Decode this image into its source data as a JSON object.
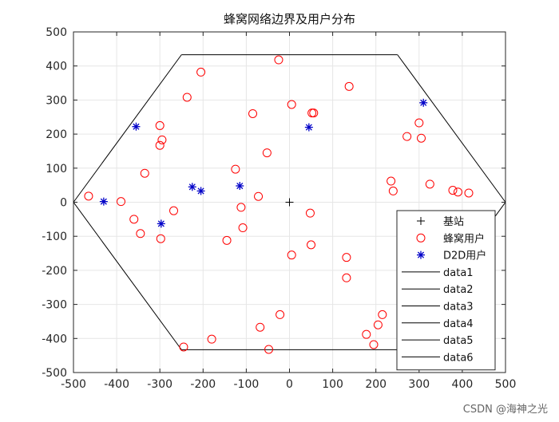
{
  "chart_data": {
    "type": "scatter",
    "title": "蜂窝网络边界及用户分布",
    "xlim": [
      -500,
      500
    ],
    "ylim": [
      -500,
      500
    ],
    "xticks": [
      -500,
      -400,
      -300,
      -200,
      -100,
      0,
      100,
      200,
      300,
      400,
      500
    ],
    "yticks": [
      -500,
      -400,
      -300,
      -200,
      -100,
      0,
      100,
      200,
      300,
      400,
      500
    ],
    "grid": true,
    "legend_position": "bottom-right",
    "base_station": {
      "name": "基站",
      "marker": "plus",
      "color": "#000000",
      "points": [
        [
          0,
          0
        ]
      ]
    },
    "cellular_users": {
      "name": "蜂窝用户",
      "marker": "circle",
      "color": "#ff0000",
      "points": [
        [
          -465,
          18
        ],
        [
          -390,
          2
        ],
        [
          -360,
          -50
        ],
        [
          -345,
          -92
        ],
        [
          -335,
          85
        ],
        [
          -300,
          225
        ],
        [
          -300,
          167
        ],
        [
          -295,
          183
        ],
        [
          -298,
          -107
        ],
        [
          -268,
          -25
        ],
        [
          -237,
          308
        ],
        [
          -205,
          382
        ],
        [
          -245,
          -425
        ],
        [
          -180,
          -402
        ],
        [
          -145,
          -112
        ],
        [
          -125,
          97
        ],
        [
          -112,
          -15
        ],
        [
          -108,
          -75
        ],
        [
          -85,
          260
        ],
        [
          -72,
          17
        ],
        [
          -68,
          -367
        ],
        [
          -52,
          145
        ],
        [
          -48,
          -432
        ],
        [
          -25,
          418
        ],
        [
          -22,
          -330
        ],
        [
          5,
          287
        ],
        [
          5,
          -155
        ],
        [
          48,
          -32
        ],
        [
          50,
          -125
        ],
        [
          52,
          262
        ],
        [
          56,
          262
        ],
        [
          132,
          -162
        ],
        [
          132,
          -222
        ],
        [
          138,
          340
        ],
        [
          178,
          -388
        ],
        [
          195,
          -418
        ],
        [
          205,
          -360
        ],
        [
          215,
          -330
        ],
        [
          235,
          62
        ],
        [
          240,
          33
        ],
        [
          272,
          193
        ],
        [
          300,
          233
        ],
        [
          305,
          188
        ],
        [
          325,
          53
        ],
        [
          378,
          35
        ],
        [
          390,
          30
        ],
        [
          415,
          27
        ]
      ]
    },
    "d2d_users": {
      "name": "D2D用户",
      "marker": "asterisk",
      "color": "#0000c8",
      "points": [
        [
          -430,
          2
        ],
        [
          -355,
          222
        ],
        [
          -297,
          -63
        ],
        [
          -225,
          45
        ],
        [
          -205,
          33
        ],
        [
          -115,
          48
        ],
        [
          45,
          220
        ],
        [
          310,
          292
        ]
      ]
    },
    "boundary": {
      "names": [
        "data1",
        "data2",
        "data3",
        "data4",
        "data5",
        "data6"
      ],
      "color": "#000000",
      "vertices": [
        [
          500,
          0
        ],
        [
          250,
          433
        ],
        [
          -250,
          433
        ],
        [
          -500,
          0
        ],
        [
          -250,
          -433
        ],
        [
          250,
          -433
        ]
      ]
    }
  },
  "footer": {
    "watermark": "CSDN @海神之光"
  }
}
